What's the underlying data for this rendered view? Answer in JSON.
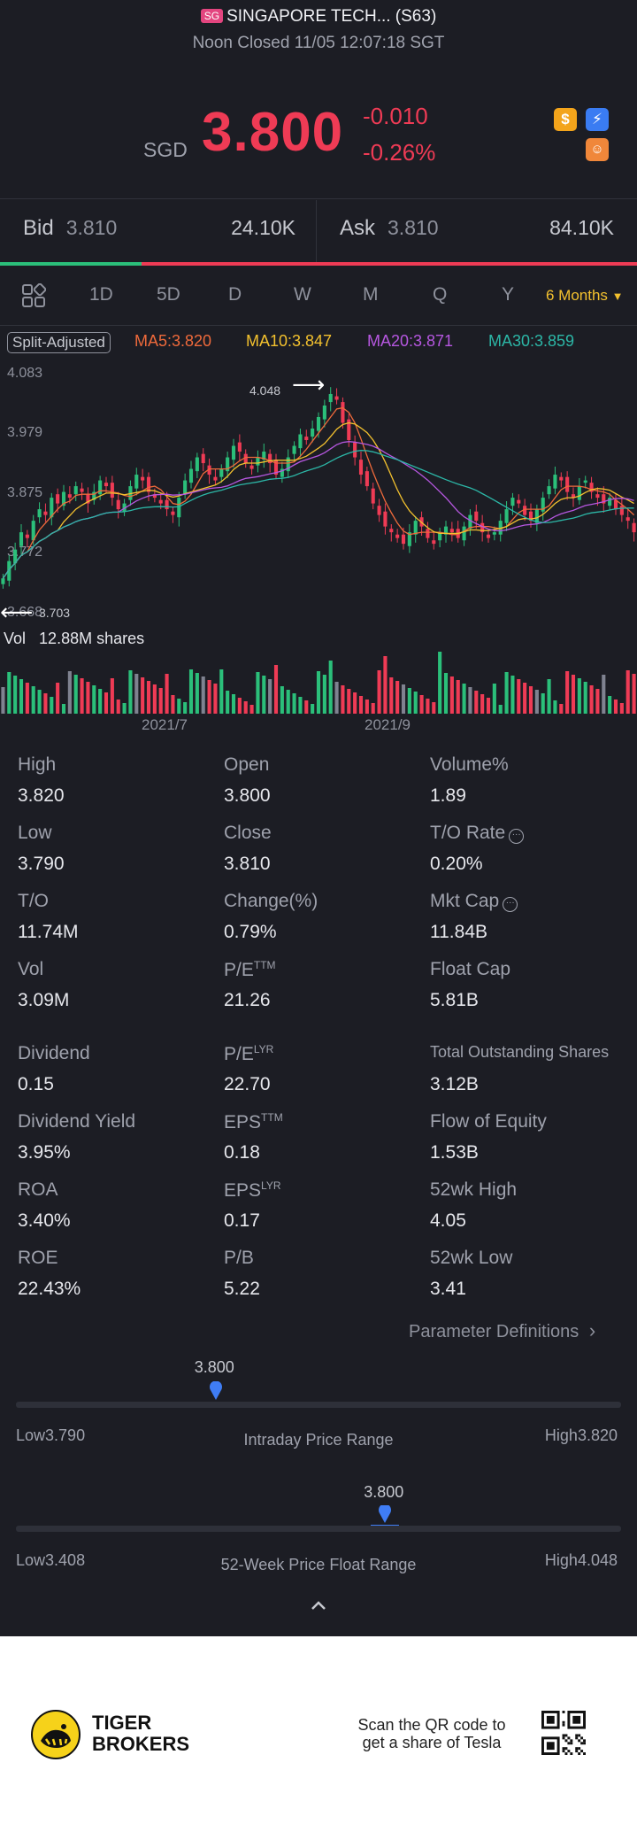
{
  "header": {
    "exchange_badge": "SG",
    "title": "SINGAPORE TECH... (S63)",
    "status": "Noon Closed 11/05 12:07:18 SGT"
  },
  "quote": {
    "currency": "SGD",
    "price": "3.800",
    "change": "-0.010",
    "change_pct": "-0.26%",
    "badges": [
      {
        "name": "dollar-icon",
        "glyph": "$",
        "color": "#f3a41b"
      },
      {
        "name": "flash-icon",
        "glyph": "⚡",
        "color": "#3a7cf2"
      },
      {
        "name": "smile-icon",
        "glyph": "☺",
        "color": "#f0873a"
      }
    ]
  },
  "bidask": {
    "bid_label": "Bid",
    "bid_price": "3.810",
    "bid_size": "24.10K",
    "ask_label": "Ask",
    "ask_price": "3.810",
    "ask_size": "84.10K"
  },
  "tabs": {
    "items": [
      "1D",
      "5D",
      "D",
      "W",
      "M",
      "Q",
      "Y"
    ],
    "active": "6 Months"
  },
  "ma": {
    "split": "Split-Adjusted",
    "ma5": "MA5:3.820",
    "ma10": "MA10:3.847",
    "ma20": "MA20:3.871",
    "ma30": "MA30:3.859",
    "colors": {
      "ma5": "#ef6a3b",
      "ma10": "#f3c12e",
      "ma20": "#b657e0",
      "ma30": "#2cb7a7"
    }
  },
  "chart_data": {
    "type": "candlestick",
    "y_ticks": [
      "4.083",
      "3.979",
      "3.875",
      "3.772",
      "3.668"
    ],
    "ylim": [
      3.668,
      4.083
    ],
    "high_annotation": "4.048",
    "low_annotation": "3.703",
    "volume_label": "Vol",
    "volume_value": "12.88M shares",
    "x_ticks": [
      "2021/7",
      "2021/9"
    ],
    "up_color": "#2bbf7a",
    "down_color": "#ef3b55",
    "closes": [
      3.72,
      3.75,
      3.77,
      3.8,
      3.79,
      3.82,
      3.84,
      3.83,
      3.86,
      3.85,
      3.87,
      3.86,
      3.88,
      3.87,
      3.85,
      3.87,
      3.89,
      3.88,
      3.86,
      3.84,
      3.85,
      3.88,
      3.9,
      3.89,
      3.87,
      3.86,
      3.85,
      3.84,
      3.83,
      3.86,
      3.89,
      3.91,
      3.93,
      3.92,
      3.9,
      3.89,
      3.91,
      3.93,
      3.95,
      3.94,
      3.92,
      3.91,
      3.93,
      3.94,
      3.92,
      3.9,
      3.91,
      3.93,
      3.95,
      3.97,
      3.96,
      3.98,
      4.0,
      4.02,
      4.04,
      4.03,
      3.99,
      3.96,
      3.93,
      3.9,
      3.88,
      3.85,
      3.83,
      3.81,
      3.8,
      3.79,
      3.78,
      3.8,
      3.82,
      3.81,
      3.79,
      3.78,
      3.8,
      3.81,
      3.8,
      3.79,
      3.81,
      3.83,
      3.82,
      3.8,
      3.79,
      3.8,
      3.82,
      3.84,
      3.86,
      3.85,
      3.83,
      3.82,
      3.84,
      3.86,
      3.88,
      3.9,
      3.89,
      3.87,
      3.86,
      3.88,
      3.89,
      3.87,
      3.86,
      3.85,
      3.86,
      3.84,
      3.83,
      3.82,
      3.8
    ]
  },
  "stats": [
    {
      "label": "High",
      "value": "3.820"
    },
    {
      "label": "Open",
      "value": "3.800"
    },
    {
      "label": "Volume%",
      "value": "1.89"
    },
    {
      "label": "Low",
      "value": "3.790"
    },
    {
      "label": "Close",
      "value": "3.810"
    },
    {
      "label": "T/O Rate",
      "value": "0.20%"
    },
    {
      "label": "T/O",
      "value": "11.74M"
    },
    {
      "label": "Change(%)",
      "value": "0.79%"
    },
    {
      "label": "Mkt Cap",
      "value": "11.84B"
    },
    {
      "label": "Vol",
      "value": "3.09M"
    },
    {
      "label": "P/E",
      "sup": "TTM",
      "value": "21.26"
    },
    {
      "label": "Float Cap",
      "value": "5.81B"
    },
    {
      "label": "Dividend",
      "value": "0.15"
    },
    {
      "label": "P/E",
      "sup": "LYR",
      "value": "22.70"
    },
    {
      "label": "Total Outstanding Shares",
      "value": "3.12B"
    },
    {
      "label": "Dividend Yield",
      "value": "3.95%"
    },
    {
      "label": "EPS",
      "sup": "TTM",
      "value": "0.18"
    },
    {
      "label": "Flow of Equity",
      "value": "1.53B"
    },
    {
      "label": "ROA",
      "value": "3.40%"
    },
    {
      "label": "EPS",
      "sup": "LYR",
      "value": "0.17"
    },
    {
      "label": "52wk High",
      "value": "4.05"
    },
    {
      "label": "ROE",
      "value": "22.43%"
    },
    {
      "label": "P/B",
      "value": "5.22"
    },
    {
      "label": "52wk Low",
      "value": "3.41"
    }
  ],
  "param_link": "Parameter Definitions",
  "intraday": {
    "current": "3.800",
    "current_fraction": 0.33,
    "low_label": "Low",
    "low": "3.790",
    "high_label": "High",
    "high": "3.820",
    "title": "Intraday Price Range"
  },
  "week52": {
    "current": "3.800",
    "current_fraction": 0.61,
    "low_label": "Low",
    "low": "3.408",
    "high_label": "High",
    "high": "4.048",
    "title": "52-Week Price Float Range"
  },
  "footer": {
    "brand_line1": "TIGER",
    "brand_line2": "BROKERS",
    "scan_line1": "Scan the QR code to",
    "scan_line2": "get a share of Tesla"
  }
}
